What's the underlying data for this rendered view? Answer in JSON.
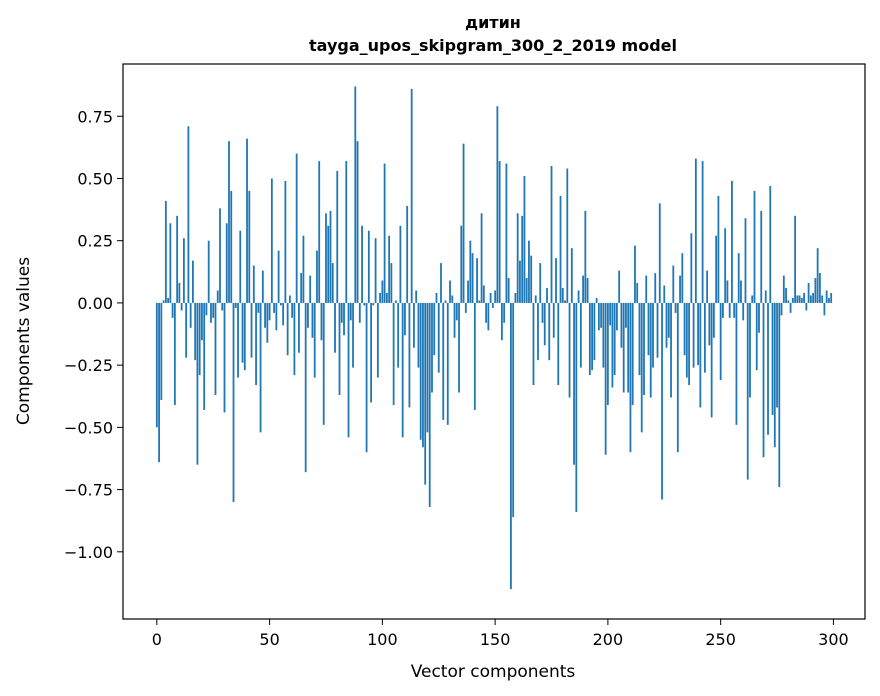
{
  "chart_data": {
    "type": "bar",
    "title": "дитин",
    "subtitle": "tayga_upos_skipgram_300_2_2019 model",
    "xlabel": "Vector components",
    "ylabel": "Components values",
    "xlim": [
      -15,
      314
    ],
    "ylim": [
      -1.27,
      0.96
    ],
    "xticks": [
      0,
      50,
      100,
      150,
      200,
      250,
      300
    ],
    "xtick_labels": [
      "0",
      "50",
      "100",
      "150",
      "200",
      "250",
      "300"
    ],
    "yticks": [
      -1.0,
      -0.75,
      -0.5,
      -0.25,
      0.0,
      0.25,
      0.5,
      0.75
    ],
    "ytick_labels": [
      "−1.00",
      "−0.75",
      "−0.50",
      "−0.25",
      "0.00",
      "0.25",
      "0.50",
      "0.75"
    ],
    "grid": false,
    "legend": "none",
    "bar_color": "#1f77b4",
    "x": [
      0,
      1,
      2,
      3,
      4,
      5,
      6,
      7,
      8,
      9,
      10,
      11,
      12,
      13,
      14,
      15,
      16,
      17,
      18,
      19,
      20,
      21,
      22,
      23,
      24,
      25,
      26,
      27,
      28,
      29,
      30,
      31,
      32,
      33,
      34,
      35,
      36,
      37,
      38,
      39,
      40,
      41,
      42,
      43,
      44,
      45,
      46,
      47,
      48,
      49,
      50,
      51,
      52,
      53,
      54,
      55,
      56,
      57,
      58,
      59,
      60,
      61,
      62,
      63,
      64,
      65,
      66,
      67,
      68,
      69,
      70,
      71,
      72,
      73,
      74,
      75,
      76,
      77,
      78,
      79,
      80,
      81,
      82,
      83,
      84,
      85,
      86,
      87,
      88,
      89,
      90,
      91,
      92,
      93,
      94,
      95,
      96,
      97,
      98,
      99,
      100,
      101,
      102,
      103,
      104,
      105,
      106,
      107,
      108,
      109,
      110,
      111,
      112,
      113,
      114,
      115,
      116,
      117,
      118,
      119,
      120,
      121,
      122,
      123,
      124,
      125,
      126,
      127,
      128,
      129,
      130,
      131,
      132,
      133,
      134,
      135,
      136,
      137,
      138,
      139,
      140,
      141,
      142,
      143,
      144,
      145,
      146,
      147,
      148,
      149,
      150,
      151,
      152,
      153,
      154,
      155,
      156,
      157,
      158,
      159,
      160,
      161,
      162,
      163,
      164,
      165,
      166,
      167,
      168,
      169,
      170,
      171,
      172,
      173,
      174,
      175,
      176,
      177,
      178,
      179,
      180,
      181,
      182,
      183,
      184,
      185,
      186,
      187,
      188,
      189,
      190,
      191,
      192,
      193,
      194,
      195,
      196,
      197,
      198,
      199,
      200,
      201,
      202,
      203,
      204,
      205,
      206,
      207,
      208,
      209,
      210,
      211,
      212,
      213,
      214,
      215,
      216,
      217,
      218,
      219,
      220,
      221,
      222,
      223,
      224,
      225,
      226,
      227,
      228,
      229,
      230,
      231,
      232,
      233,
      234,
      235,
      236,
      237,
      238,
      239,
      240,
      241,
      242,
      243,
      244,
      245,
      246,
      247,
      248,
      249,
      250,
      251,
      252,
      253,
      254,
      255,
      256,
      257,
      258,
      259,
      260,
      261,
      262,
      263,
      264,
      265,
      266,
      267,
      268,
      269,
      270,
      271,
      272,
      273,
      274,
      275,
      276,
      277,
      278,
      279,
      280,
      281,
      282,
      283,
      284,
      285,
      286,
      287,
      288,
      289,
      290,
      291,
      292,
      293,
      294,
      295,
      296,
      297,
      298,
      299
    ],
    "values": [
      -0.5,
      -0.64,
      -0.39,
      0.01,
      0.41,
      0.02,
      0.32,
      -0.06,
      -0.41,
      0.35,
      0.08,
      -0.03,
      0.26,
      -0.22,
      0.71,
      -0.1,
      0.17,
      -0.23,
      -0.65,
      -0.29,
      -0.15,
      -0.43,
      -0.05,
      0.25,
      -0.08,
      -0.06,
      -0.37,
      0.05,
      0.38,
      -0.03,
      -0.44,
      0.32,
      0.65,
      0.45,
      -0.8,
      -0.02,
      -0.3,
      0.29,
      -0.24,
      -0.27,
      0.66,
      0.45,
      -0.22,
      0.15,
      -0.33,
      -0.04,
      -0.52,
      0.13,
      -0.1,
      -0.16,
      -0.07,
      0.5,
      -0.04,
      -0.11,
      0.21,
      -0.01,
      -0.09,
      0.49,
      -0.21,
      0.03,
      -0.06,
      -0.29,
      0.6,
      -0.2,
      0.12,
      0.27,
      -0.68,
      -0.1,
      0.11,
      -0.14,
      -0.3,
      0.21,
      0.57,
      -0.15,
      -0.49,
      0.36,
      0.31,
      0.37,
      0.16,
      -0.2,
      0.53,
      -0.37,
      -0.08,
      -0.13,
      0.57,
      -0.54,
      -0.07,
      -0.26,
      0.87,
      0.65,
      -0.08,
      0.31,
      -0.01,
      -0.6,
      0.29,
      -0.4,
      -0.01,
      0.26,
      -0.3,
      0.04,
      0.09,
      0.56,
      0.04,
      0.27,
      0.16,
      -0.41,
      0.01,
      -0.26,
      0.31,
      -0.54,
      -0.13,
      0.39,
      -0.42,
      0.86,
      -0.18,
      0.05,
      -0.26,
      -0.55,
      -0.58,
      -0.73,
      -0.52,
      -0.82,
      -0.36,
      -0.21,
      0.04,
      -0.28,
      0.16,
      -0.47,
      0.01,
      -0.49,
      0.09,
      0.03,
      -0.14,
      -0.07,
      -0.36,
      0.31,
      0.64,
      -0.04,
      0.09,
      0.25,
      0.2,
      -0.43,
      0.18,
      0.01,
      0.36,
      0.07,
      -0.08,
      -0.11,
      0.04,
      -0.02,
      0.05,
      0.79,
      0.57,
      -0.15,
      -0.08,
      0.56,
      0.1,
      -1.15,
      -0.86,
      0.04,
      0.36,
      0.17,
      0.35,
      0.51,
      0.1,
      0.25,
      0.19,
      -0.33,
      0.03,
      -0.23,
      0.16,
      -0.08,
      -0.17,
      0.06,
      -0.23,
      0.55,
      -0.14,
      0.18,
      -0.33,
      0.43,
      0.06,
      0.01,
      0.54,
      -0.38,
      0.22,
      -0.65,
      -0.84,
      0.05,
      -0.26,
      0.11,
      0.37,
      0.1,
      -0.29,
      -0.27,
      -0.23,
      0.02,
      -0.11,
      -0.1,
      -0.26,
      -0.61,
      -0.41,
      -0.09,
      -0.34,
      -0.29,
      -0.11,
      0.13,
      -0.18,
      -0.36,
      -0.1,
      -0.36,
      -0.6,
      -0.41,
      0.23,
      0.08,
      -0.29,
      -0.52,
      -0.37,
      0.11,
      -0.21,
      -0.38,
      -0.26,
      0.12,
      -0.22,
      0.4,
      -0.79,
      0.07,
      -0.18,
      -0.14,
      -0.38,
      0.15,
      -0.04,
      -0.6,
      0.11,
      0.2,
      -0.21,
      -0.3,
      -0.33,
      0.28,
      -0.26,
      0.58,
      -0.25,
      -0.42,
      0.57,
      -0.28,
      0.13,
      -0.17,
      -0.46,
      -0.14,
      0.27,
      0.43,
      -0.31,
      -0.06,
      0.3,
      0.09,
      -0.06,
      0.49,
      -0.06,
      -0.49,
      0.2,
      0.09,
      -0.07,
      0.34,
      -0.71,
      -0.38,
      0.03,
      0.45,
      -0.27,
      -0.12,
      0.37,
      -0.62,
      0.05,
      -0.53,
      0.47,
      -0.45,
      -0.58,
      -0.42,
      -0.74,
      -0.05,
      0.11,
      0.06,
      0.01,
      -0.04,
      0.02,
      0.35,
      0.03,
      0.03,
      0.02,
      0.04,
      -0.03,
      0.08,
      0.03,
      0.04,
      0.1,
      0.22,
      0.12,
      0.03,
      -0.05,
      0.05,
      0.02,
      0.04
    ]
  }
}
